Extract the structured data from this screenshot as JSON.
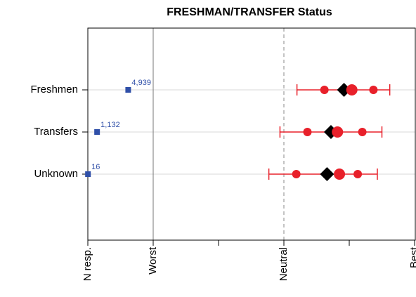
{
  "chart_data": {
    "type": "interval",
    "title": "FRESHMAN/TRANSFER Status",
    "categories": [
      "Freshmen",
      "Transfers",
      "Unknown"
    ],
    "counts": [
      4939,
      1132,
      16
    ],
    "count_labels": [
      "4,939",
      "1,132",
      "16"
    ],
    "count_scale": [
      0,
      8000
    ],
    "count_color": "#2f4fa8",
    "ci_low": [
      3.2,
      2.94,
      2.77
    ],
    "ci_high": [
      4.62,
      4.5,
      4.43
    ],
    "q_low": [
      3.62,
      3.36,
      3.19
    ],
    "q_high": [
      4.37,
      4.2,
      4.13
    ],
    "mean": [
      4.04,
      3.82,
      3.85
    ],
    "median": [
      3.92,
      3.72,
      3.66
    ],
    "color": "#e8202a",
    "median_color": "#000000",
    "xlim": [
      0,
      5
    ],
    "xticks": [
      {
        "value": 0,
        "label": "N resp."
      },
      {
        "value": 1,
        "label": "Worst"
      },
      {
        "value": 2,
        "label": null
      },
      {
        "value": 3,
        "label": "Neutral"
      },
      {
        "value": 4,
        "label": null
      },
      {
        "value": 5,
        "label": "Best"
      }
    ],
    "grid": true
  }
}
